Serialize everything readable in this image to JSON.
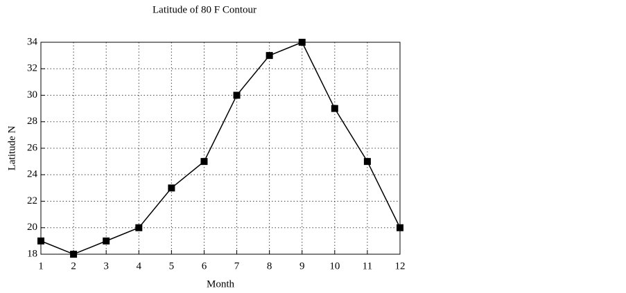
{
  "chart_data": {
    "type": "line",
    "title": "Latitude of 80 F Contour",
    "x_label": "Month",
    "y_label": "Latitude N",
    "x": [
      1,
      2,
      3,
      4,
      5,
      6,
      7,
      8,
      9,
      10,
      11,
      12
    ],
    "series": [
      {
        "name": "Latitude",
        "color": "#000000",
        "values": [
          19,
          18,
          19,
          20,
          23,
          25,
          30,
          33,
          34,
          29,
          25,
          20
        ]
      }
    ],
    "xlim": [
      1,
      12
    ],
    "xticks": [
      1,
      2,
      3,
      4,
      5,
      6,
      7,
      8,
      9,
      10,
      11,
      12
    ],
    "ylim": [
      18,
      34
    ],
    "yticks": [
      18,
      20,
      22,
      24,
      26,
      28,
      30,
      32,
      34
    ],
    "grid": true
  }
}
